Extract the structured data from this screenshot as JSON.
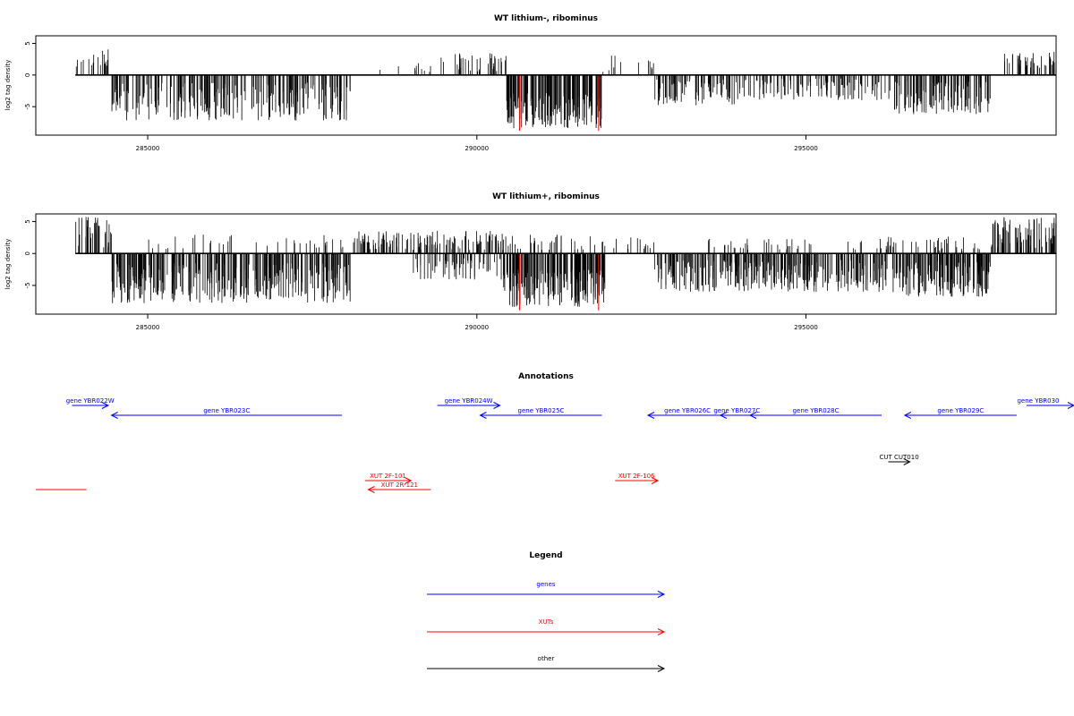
{
  "chart_data": [
    {
      "type": "bar",
      "title": "WT lithium-, ribominus",
      "ylabel": "log2 tag density",
      "xlim": [
        283300,
        298800
      ],
      "ylim": [
        -9.5,
        6.2
      ],
      "x_ticks": [
        285000,
        290000,
        295000
      ],
      "x_tick_labels": [
        "285000",
        "290000",
        "295000"
      ],
      "y_ticks": [
        -5,
        0,
        5
      ],
      "y_tick_labels": [
        "-5",
        "0",
        "5"
      ],
      "highlight_x": [
        290650,
        291850
      ],
      "highlight_depth": -8.8,
      "baseline": [
        283900,
        298800
      ],
      "segments": [
        {
          "x0": 283900,
          "x1": 284450,
          "lo": 0.6,
          "hi": 4.2,
          "n": 18
        },
        {
          "x0": 284450,
          "x1": 288100,
          "lo": -7.2,
          "hi": -1.2,
          "n": 260
        },
        {
          "x0": 288100,
          "x1": 289400,
          "lo": 0.4,
          "hi": 2.0,
          "n": 10
        },
        {
          "x0": 289400,
          "x1": 290450,
          "lo": 0.5,
          "hi": 3.5,
          "n": 40
        },
        {
          "x0": 290450,
          "x1": 291900,
          "lo": -8.4,
          "hi": -2.8,
          "n": 170
        },
        {
          "x0": 291900,
          "x1": 292700,
          "lo": 0.5,
          "hi": 3.6,
          "n": 12
        },
        {
          "x0": 292700,
          "x1": 294000,
          "lo": -4.8,
          "hi": -0.6,
          "n": 80
        },
        {
          "x0": 294000,
          "x1": 296200,
          "lo": -4.0,
          "hi": -0.5,
          "n": 110
        },
        {
          "x0": 296200,
          "x1": 297800,
          "lo": -6.2,
          "hi": -1.0,
          "n": 120
        },
        {
          "x0": 298000,
          "x1": 298800,
          "lo": 0.6,
          "hi": 3.8,
          "n": 40
        }
      ]
    },
    {
      "type": "bar",
      "title": "WT lithium+, ribominus",
      "ylabel": "log2 tag density",
      "xlim": [
        283300,
        298800
      ],
      "ylim": [
        -9.5,
        6.2
      ],
      "x_ticks": [
        285000,
        290000,
        295000
      ],
      "x_tick_labels": [
        "285000",
        "290000",
        "295000"
      ],
      "y_ticks": [
        -5,
        0,
        5
      ],
      "y_tick_labels": [
        "-5",
        "0",
        "5"
      ],
      "highlight_x": [
        290650,
        291850
      ],
      "highlight_depth": -8.9,
      "baseline": [
        283900,
        298800
      ],
      "segments": [
        {
          "x0": 283900,
          "x1": 284450,
          "lo": 0.8,
          "hi": 5.8,
          "n": 40
        },
        {
          "x0": 284450,
          "x1": 288100,
          "lo": -7.8,
          "hi": -1.5,
          "n": 320
        },
        {
          "x0": 285000,
          "x1": 288200,
          "lo": 0.5,
          "hi": 3.0,
          "n": 40
        },
        {
          "x0": 288200,
          "x1": 290400,
          "lo": 0.5,
          "hi": 3.6,
          "n": 120
        },
        {
          "x0": 289000,
          "x1": 290400,
          "lo": -4.2,
          "hi": -0.5,
          "n": 60
        },
        {
          "x0": 290400,
          "x1": 291950,
          "lo": -8.4,
          "hi": -2.5,
          "n": 200
        },
        {
          "x0": 290400,
          "x1": 292700,
          "lo": 0.5,
          "hi": 3.0,
          "n": 50
        },
        {
          "x0": 292700,
          "x1": 296200,
          "lo": -6.0,
          "hi": -1.0,
          "n": 300
        },
        {
          "x0": 293500,
          "x1": 296200,
          "lo": 0.4,
          "hi": 2.4,
          "n": 40
        },
        {
          "x0": 296200,
          "x1": 297800,
          "lo": -6.8,
          "hi": -1.2,
          "n": 160
        },
        {
          "x0": 296200,
          "x1": 297800,
          "lo": 0.4,
          "hi": 2.8,
          "n": 40
        },
        {
          "x0": 297800,
          "x1": 298800,
          "lo": 0.8,
          "hi": 5.8,
          "n": 80
        }
      ]
    }
  ],
  "annotations": {
    "title": "Annotations",
    "xlim": [
      283300,
      298800
    ],
    "genes": [
      {
        "label": "gene YBR022W",
        "strand": "+",
        "start": 283850,
        "end": 284400,
        "row": 0
      },
      {
        "label": "gene YBR023C",
        "strand": "-",
        "start": 284450,
        "end": 287950,
        "row": 1
      },
      {
        "label": "gene YBR024W",
        "strand": "+",
        "start": 289400,
        "end": 290350,
        "row": 0
      },
      {
        "label": "gene YBR025C",
        "strand": "-",
        "start": 290050,
        "end": 291900,
        "row": 1
      },
      {
        "label": "gene YBR026C",
        "strand": "-",
        "start": 292600,
        "end": 293800,
        "row": 1
      },
      {
        "label": "gene YBR027C",
        "strand": "-",
        "start": 293700,
        "end": 294200,
        "row": 1
      },
      {
        "label": "gene YBR028C",
        "strand": "-",
        "start": 294150,
        "end": 296150,
        "row": 1
      },
      {
        "label": "gene YBR029C",
        "strand": "-",
        "start": 296500,
        "end": 298200,
        "row": 1
      },
      {
        "label": "gene YBR030",
        "strand": "+",
        "start": 298350,
        "end": 299800,
        "row": 0
      }
    ],
    "xuts": [
      {
        "label": "XUT 2F-101",
        "strand": "+",
        "start": 288300,
        "end": 289000,
        "row": 0
      },
      {
        "label": "XUT 2R-121",
        "strand": "-",
        "start": 288350,
        "end": 289300,
        "row": 1
      },
      {
        "label": "XUT 2F-106",
        "strand": "+",
        "start": 292100,
        "end": 292750,
        "row": 0
      },
      {
        "label": "",
        "strand": "+",
        "start": 283300,
        "end": 284070,
        "row": 1
      }
    ],
    "other": [
      {
        "label": "CUT CUT010",
        "strand": "+",
        "start": 296250,
        "end": 296580,
        "row": 0
      }
    ]
  },
  "legend": {
    "title": "Legend",
    "items": [
      {
        "label": "genes",
        "color": "#0000ff"
      },
      {
        "label": "XUTs",
        "color": "#ff0000"
      },
      {
        "label": "other",
        "color": "#000000"
      }
    ]
  },
  "colors": {
    "bars": "#000000",
    "highlight": "#ff0000",
    "genes": "#0000ff",
    "xuts": "#ff0000",
    "other": "#000000"
  }
}
